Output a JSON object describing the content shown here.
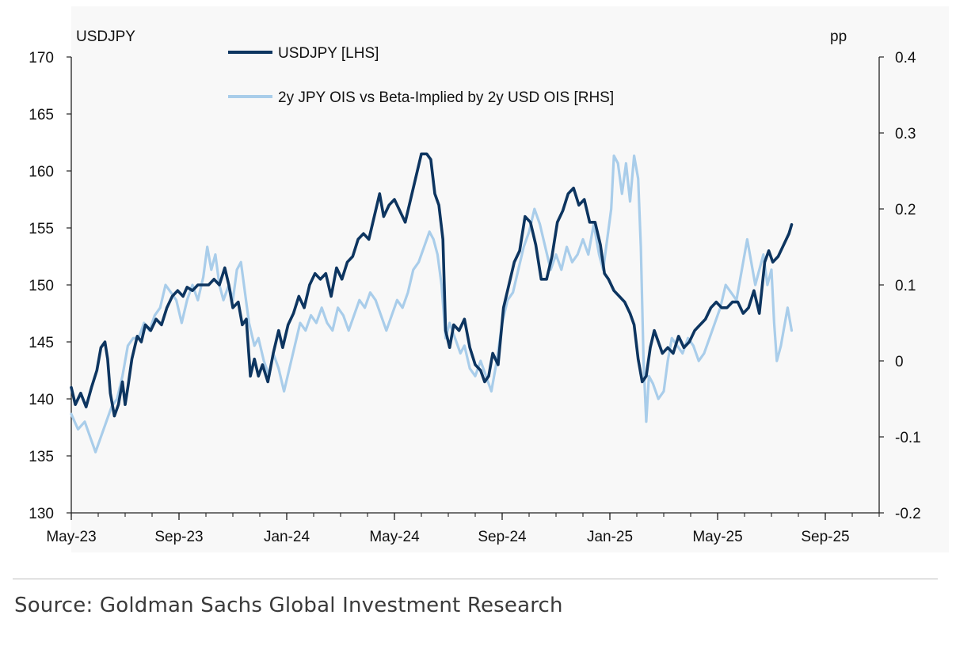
{
  "chart_data": {
    "type": "line",
    "left_axis": {
      "title": "USDJPY",
      "ylim": [
        130,
        170
      ],
      "ticks": [
        "130",
        "135",
        "140",
        "145",
        "150",
        "155",
        "160",
        "165",
        "170"
      ]
    },
    "right_axis": {
      "title": "pp",
      "ylim": [
        -0.2,
        0.4
      ],
      "ticks": [
        "-0.2",
        "-0.1",
        "0",
        "0.1",
        "0.2",
        "0.3",
        "0.4"
      ]
    },
    "x_axis": {
      "ticks": [
        "May-23",
        "Sep-23",
        "Jan-24",
        "May-24",
        "Sep-24",
        "Jan-25",
        "May-25",
        "Sep-25"
      ],
      "xlim": [
        0,
        30
      ]
    },
    "legend": {
      "position": "top-center"
    },
    "series": [
      {
        "name": "USDJPY [LHS]",
        "axis": "left",
        "color": "#0d3560",
        "points": [
          [
            0.0,
            141
          ],
          [
            0.15,
            139.5
          ],
          [
            0.35,
            140.5
          ],
          [
            0.55,
            139.3
          ],
          [
            0.75,
            141
          ],
          [
            0.95,
            142.5
          ],
          [
            1.1,
            144.5
          ],
          [
            1.25,
            145
          ],
          [
            1.35,
            143.5
          ],
          [
            1.45,
            140.5
          ],
          [
            1.6,
            138.5
          ],
          [
            1.75,
            139.5
          ],
          [
            1.9,
            141.5
          ],
          [
            2.0,
            139.5
          ],
          [
            2.1,
            141
          ],
          [
            2.25,
            143.5
          ],
          [
            2.45,
            145.5
          ],
          [
            2.6,
            145
          ],
          [
            2.75,
            146.5
          ],
          [
            2.95,
            146
          ],
          [
            3.15,
            147
          ],
          [
            3.35,
            146.5
          ],
          [
            3.55,
            148
          ],
          [
            3.75,
            149
          ],
          [
            3.95,
            149.5
          ],
          [
            4.15,
            149
          ],
          [
            4.3,
            149.8
          ],
          [
            4.5,
            149.5
          ],
          [
            4.7,
            150
          ],
          [
            4.9,
            150
          ],
          [
            5.1,
            150
          ],
          [
            5.3,
            150.5
          ],
          [
            5.5,
            150
          ],
          [
            5.7,
            151.5
          ],
          [
            5.85,
            150
          ],
          [
            6.0,
            148
          ],
          [
            6.2,
            148.5
          ],
          [
            6.35,
            146.5
          ],
          [
            6.5,
            147
          ],
          [
            6.65,
            142
          ],
          [
            6.8,
            143.5
          ],
          [
            6.95,
            142
          ],
          [
            7.1,
            143
          ],
          [
            7.3,
            141.5
          ],
          [
            7.5,
            144
          ],
          [
            7.7,
            146
          ],
          [
            7.85,
            144.5
          ],
          [
            8.05,
            146.5
          ],
          [
            8.25,
            147.5
          ],
          [
            8.45,
            149
          ],
          [
            8.65,
            148
          ],
          [
            8.85,
            150
          ],
          [
            9.05,
            151
          ],
          [
            9.25,
            150.5
          ],
          [
            9.45,
            151
          ],
          [
            9.65,
            149
          ],
          [
            9.85,
            151.5
          ],
          [
            10.05,
            150.5
          ],
          [
            10.25,
            152
          ],
          [
            10.45,
            152.5
          ],
          [
            10.65,
            154
          ],
          [
            10.85,
            154.5
          ],
          [
            11.05,
            154
          ],
          [
            11.25,
            156
          ],
          [
            11.45,
            158
          ],
          [
            11.6,
            156
          ],
          [
            11.8,
            157
          ],
          [
            12.0,
            157.5
          ],
          [
            12.2,
            156.5
          ],
          [
            12.4,
            155.5
          ],
          [
            12.6,
            157.5
          ],
          [
            12.8,
            159.5
          ],
          [
            13.0,
            161.5
          ],
          [
            13.2,
            161.5
          ],
          [
            13.35,
            161
          ],
          [
            13.5,
            158
          ],
          [
            13.65,
            157
          ],
          [
            13.8,
            154
          ],
          [
            13.9,
            146
          ],
          [
            14.05,
            144.5
          ],
          [
            14.2,
            146.5
          ],
          [
            14.4,
            146
          ],
          [
            14.6,
            147
          ],
          [
            14.8,
            144.5
          ],
          [
            15.0,
            143
          ],
          [
            15.2,
            142.5
          ],
          [
            15.35,
            141.5
          ],
          [
            15.5,
            142
          ],
          [
            15.65,
            144
          ],
          [
            15.85,
            143
          ],
          [
            16.05,
            148
          ],
          [
            16.25,
            150
          ],
          [
            16.45,
            152
          ],
          [
            16.65,
            153
          ],
          [
            16.85,
            156
          ],
          [
            17.05,
            155.5
          ],
          [
            17.25,
            153.5
          ],
          [
            17.45,
            150.5
          ],
          [
            17.65,
            150.5
          ],
          [
            17.85,
            152.5
          ],
          [
            18.05,
            155.5
          ],
          [
            18.25,
            156.5
          ],
          [
            18.45,
            158
          ],
          [
            18.65,
            158.5
          ],
          [
            18.85,
            157
          ],
          [
            19.05,
            157.5
          ],
          [
            19.25,
            155.5
          ],
          [
            19.45,
            155.5
          ],
          [
            19.65,
            153.5
          ],
          [
            19.8,
            151
          ],
          [
            19.95,
            150.5
          ],
          [
            20.15,
            149.5
          ],
          [
            20.35,
            149
          ],
          [
            20.55,
            148.5
          ],
          [
            20.75,
            147.5
          ],
          [
            20.9,
            146.5
          ],
          [
            21.05,
            143.5
          ],
          [
            21.2,
            141.5
          ],
          [
            21.35,
            142
          ],
          [
            21.5,
            144.5
          ],
          [
            21.65,
            146
          ],
          [
            21.8,
            145
          ],
          [
            21.95,
            144
          ],
          [
            22.15,
            144.5
          ],
          [
            22.35,
            144
          ],
          [
            22.55,
            145.5
          ],
          [
            22.75,
            144.5
          ],
          [
            22.95,
            145
          ],
          [
            23.15,
            146
          ],
          [
            23.35,
            146.5
          ],
          [
            23.55,
            147
          ],
          [
            23.75,
            148
          ],
          [
            23.95,
            148.5
          ],
          [
            24.15,
            148
          ],
          [
            24.35,
            148
          ],
          [
            24.55,
            148.5
          ],
          [
            24.75,
            148.5
          ],
          [
            24.95,
            147.5
          ],
          [
            25.15,
            148
          ],
          [
            25.35,
            149.5
          ],
          [
            25.55,
            147.5
          ],
          [
            25.75,
            152
          ],
          [
            25.9,
            153
          ],
          [
            26.05,
            152
          ],
          [
            26.25,
            152.5
          ],
          [
            26.45,
            153.5
          ],
          [
            26.65,
            154.5
          ],
          [
            26.75,
            155.3
          ]
        ]
      },
      {
        "name": "2y JPY OIS vs Beta-Implied by 2y USD OIS [RHS]",
        "axis": "right",
        "color": "#a9cdea",
        "points": [
          [
            0.0,
            -0.07
          ],
          [
            0.25,
            -0.09
          ],
          [
            0.5,
            -0.08
          ],
          [
            0.7,
            -0.1
          ],
          [
            0.9,
            -0.12
          ],
          [
            1.1,
            -0.1
          ],
          [
            1.3,
            -0.08
          ],
          [
            1.5,
            -0.06
          ],
          [
            1.7,
            -0.05
          ],
          [
            1.9,
            -0.02
          ],
          [
            2.1,
            0.02
          ],
          [
            2.3,
            0.03
          ],
          [
            2.5,
            0.03
          ],
          [
            2.7,
            0.05
          ],
          [
            2.9,
            0.04
          ],
          [
            3.1,
            0.06
          ],
          [
            3.3,
            0.07
          ],
          [
            3.5,
            0.1
          ],
          [
            3.7,
            0.09
          ],
          [
            3.9,
            0.08
          ],
          [
            4.1,
            0.05
          ],
          [
            4.3,
            0.08
          ],
          [
            4.5,
            0.1
          ],
          [
            4.7,
            0.08
          ],
          [
            4.9,
            0.11
          ],
          [
            5.05,
            0.15
          ],
          [
            5.2,
            0.12
          ],
          [
            5.35,
            0.14
          ],
          [
            5.5,
            0.1
          ],
          [
            5.65,
            0.08
          ],
          [
            5.85,
            0.1
          ],
          [
            6.0,
            0.08
          ],
          [
            6.15,
            0.12
          ],
          [
            6.3,
            0.13
          ],
          [
            6.45,
            0.09
          ],
          [
            6.6,
            0.05
          ],
          [
            6.8,
            0.02
          ],
          [
            6.95,
            0.03
          ],
          [
            7.15,
            0.0
          ],
          [
            7.35,
            -0.02
          ],
          [
            7.5,
            0.01
          ],
          [
            7.7,
            -0.01
          ],
          [
            7.9,
            -0.04
          ],
          [
            8.1,
            -0.01
          ],
          [
            8.3,
            0.02
          ],
          [
            8.5,
            0.05
          ],
          [
            8.7,
            0.04
          ],
          [
            8.9,
            0.06
          ],
          [
            9.1,
            0.05
          ],
          [
            9.3,
            0.07
          ],
          [
            9.5,
            0.05
          ],
          [
            9.7,
            0.04
          ],
          [
            9.9,
            0.07
          ],
          [
            10.1,
            0.06
          ],
          [
            10.3,
            0.04
          ],
          [
            10.5,
            0.06
          ],
          [
            10.7,
            0.08
          ],
          [
            10.9,
            0.07
          ],
          [
            11.1,
            0.09
          ],
          [
            11.3,
            0.08
          ],
          [
            11.5,
            0.06
          ],
          [
            11.7,
            0.04
          ],
          [
            11.9,
            0.06
          ],
          [
            12.1,
            0.08
          ],
          [
            12.3,
            0.07
          ],
          [
            12.5,
            0.09
          ],
          [
            12.7,
            0.12
          ],
          [
            12.9,
            0.13
          ],
          [
            13.1,
            0.15
          ],
          [
            13.3,
            0.17
          ],
          [
            13.45,
            0.16
          ],
          [
            13.6,
            0.14
          ],
          [
            13.75,
            0.1
          ],
          [
            13.9,
            0.03
          ],
          [
            14.05,
            0.05
          ],
          [
            14.25,
            0.03
          ],
          [
            14.45,
            0.01
          ],
          [
            14.6,
            0.02
          ],
          [
            14.8,
            -0.01
          ],
          [
            15.0,
            -0.02
          ],
          [
            15.2,
            0.0
          ],
          [
            15.4,
            -0.02
          ],
          [
            15.6,
            -0.04
          ],
          [
            15.8,
            0.0
          ],
          [
            16.0,
            0.05
          ],
          [
            16.2,
            0.08
          ],
          [
            16.4,
            0.09
          ],
          [
            16.6,
            0.12
          ],
          [
            16.8,
            0.15
          ],
          [
            17.0,
            0.17
          ],
          [
            17.2,
            0.2
          ],
          [
            17.4,
            0.18
          ],
          [
            17.6,
            0.15
          ],
          [
            17.8,
            0.12
          ],
          [
            18.0,
            0.14
          ],
          [
            18.2,
            0.12
          ],
          [
            18.4,
            0.15
          ],
          [
            18.6,
            0.13
          ],
          [
            18.8,
            0.14
          ],
          [
            19.0,
            0.16
          ],
          [
            19.2,
            0.14
          ],
          [
            19.4,
            0.18
          ],
          [
            19.6,
            0.14
          ],
          [
            19.75,
            0.12
          ],
          [
            19.9,
            0.16
          ],
          [
            20.05,
            0.2
          ],
          [
            20.15,
            0.27
          ],
          [
            20.3,
            0.26
          ],
          [
            20.45,
            0.22
          ],
          [
            20.6,
            0.26
          ],
          [
            20.75,
            0.21
          ],
          [
            20.9,
            0.27
          ],
          [
            21.05,
            0.24
          ],
          [
            21.15,
            0.15
          ],
          [
            21.25,
            0.0
          ],
          [
            21.35,
            -0.08
          ],
          [
            21.45,
            -0.02
          ],
          [
            21.6,
            -0.03
          ],
          [
            21.8,
            -0.05
          ],
          [
            22.0,
            -0.04
          ],
          [
            22.15,
            0.0
          ],
          [
            22.3,
            0.03
          ],
          [
            22.5,
            0.02
          ],
          [
            22.7,
            0.01
          ],
          [
            22.9,
            0.03
          ],
          [
            23.1,
            0.02
          ],
          [
            23.3,
            0.0
          ],
          [
            23.5,
            0.01
          ],
          [
            23.7,
            0.03
          ],
          [
            23.9,
            0.05
          ],
          [
            24.1,
            0.07
          ],
          [
            24.3,
            0.1
          ],
          [
            24.5,
            0.09
          ],
          [
            24.7,
            0.08
          ],
          [
            24.9,
            0.12
          ],
          [
            25.1,
            0.16
          ],
          [
            25.25,
            0.13
          ],
          [
            25.4,
            0.1
          ],
          [
            25.55,
            0.12
          ],
          [
            25.7,
            0.14
          ],
          [
            25.85,
            0.1
          ],
          [
            26.0,
            0.12
          ],
          [
            26.1,
            0.05
          ],
          [
            26.2,
            0.0
          ],
          [
            26.35,
            0.02
          ],
          [
            26.5,
            0.05
          ],
          [
            26.6,
            0.07
          ],
          [
            26.75,
            0.04
          ]
        ]
      }
    ]
  },
  "source": "Source: Goldman Sachs Global Investment Research"
}
